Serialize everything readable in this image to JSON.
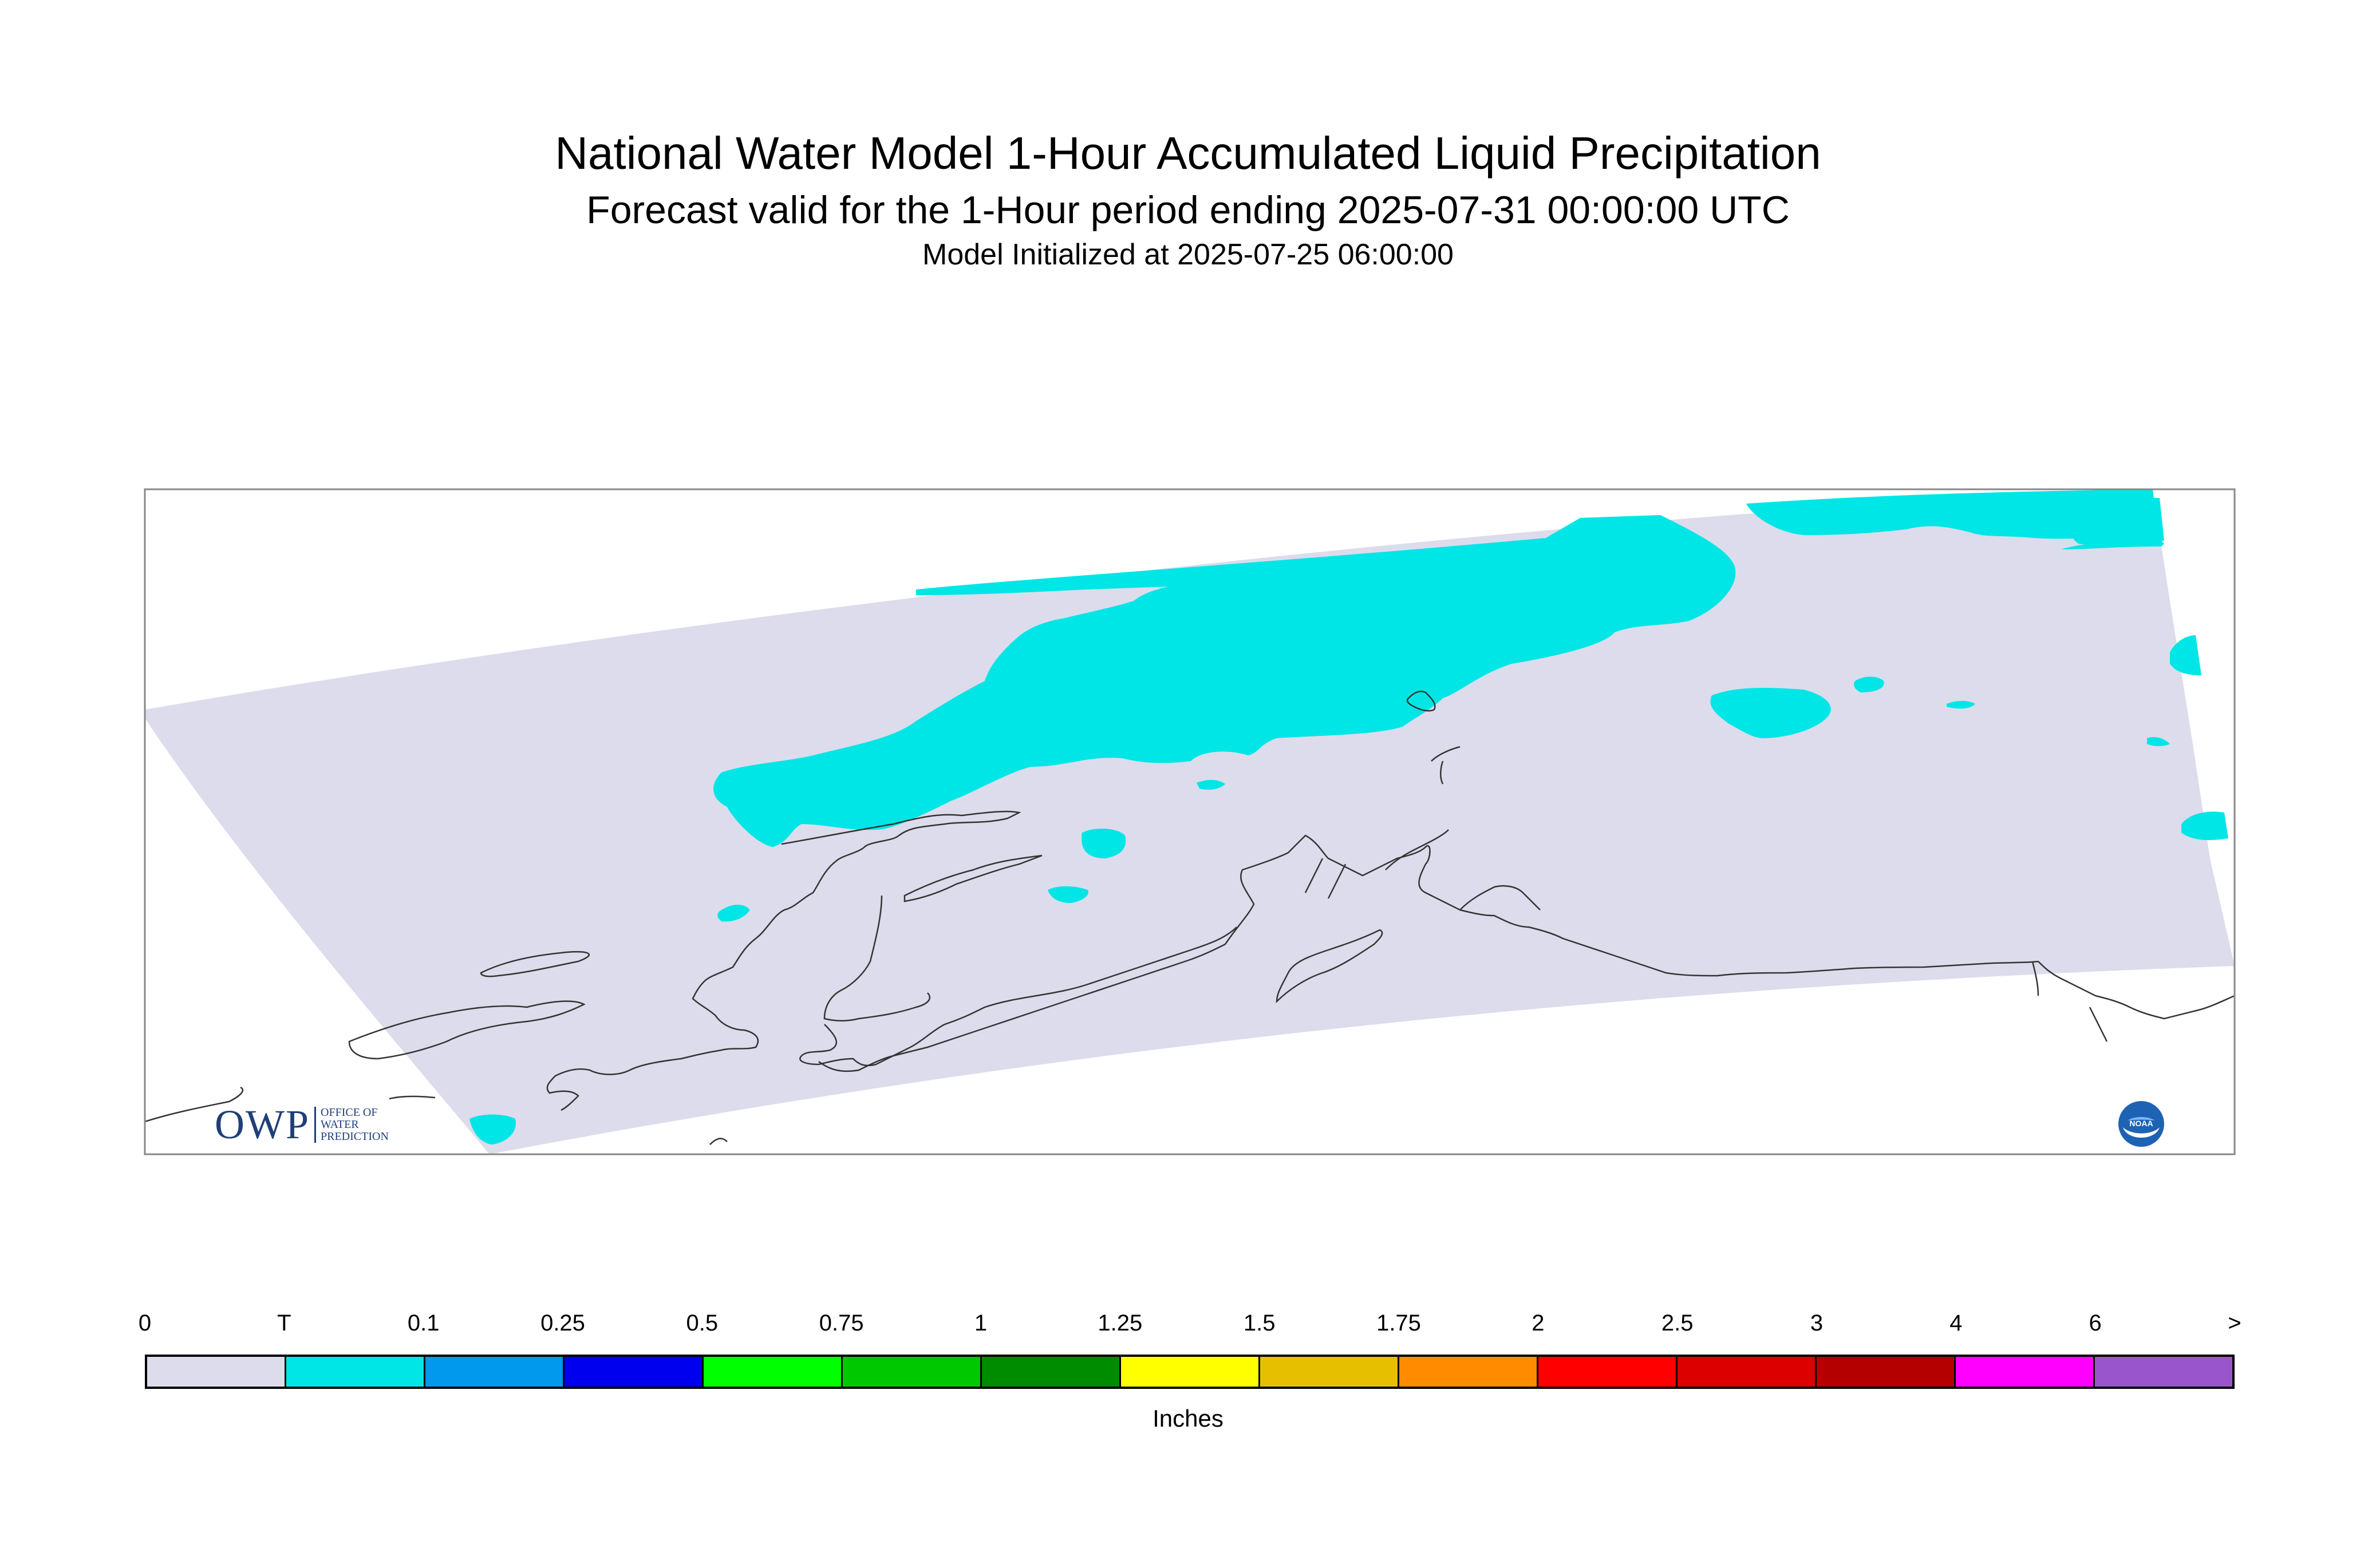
{
  "title": {
    "main": "National Water Model 1-Hour Accumulated Liquid Precipitation",
    "subtitle": "Forecast valid for the 1-Hour period ending 2025-07-31 00:00:00 UTC",
    "init": "Model Initialized at 2025-07-25 06:00:00"
  },
  "map": {
    "region": "Alaska",
    "variable": "1-Hour Accumulated Liquid Precipitation",
    "no_precip_color": "#dcdcec",
    "trace_color": "#00e6e6",
    "coastline_color": "#333333"
  },
  "logos": {
    "owp_mark": "OWP",
    "owp_lines": [
      "Office of",
      "Water",
      "Prediction"
    ],
    "noaa_text": "NOAA",
    "noaa_icon": "noaa-seal-icon"
  },
  "legend": {
    "labels": [
      "0",
      "T",
      "0.1",
      "0.25",
      "0.5",
      "0.75",
      "1",
      "1.25",
      "1.5",
      "1.75",
      "2",
      "2.5",
      "3",
      "4",
      "6",
      ">"
    ],
    "colors": [
      "#dcdcec",
      "#00e6e6",
      "#0099ee",
      "#0000ee",
      "#00ff00",
      "#00c800",
      "#008c00",
      "#ffff00",
      "#e6c000",
      "#ff8c00",
      "#ff0000",
      "#dc0000",
      "#b40000",
      "#ff00ff",
      "#9955cc"
    ],
    "units": "Inches"
  }
}
